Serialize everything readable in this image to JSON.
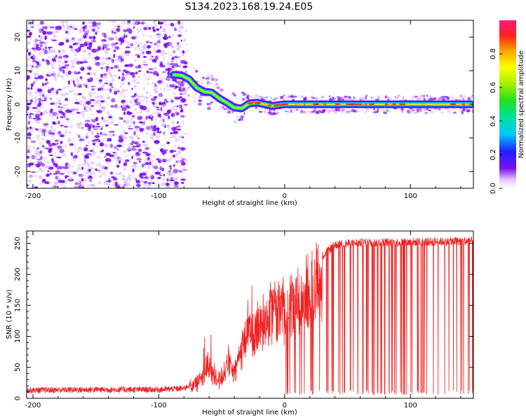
{
  "figure_title": "S134.2023.168.19.24.E05",
  "chart_data": [
    {
      "type": "heatmap",
      "xlabel": "Height of straight line (km)",
      "ylabel": "Frequency (Hz)",
      "xlim": [
        -205,
        150
      ],
      "ylim": [
        -25,
        25
      ],
      "x_ticks": [
        -200,
        -100,
        0,
        100
      ],
      "y_ticks": [
        -20,
        -10,
        0,
        10,
        20
      ],
      "colorbar": {
        "label": "Normalized spectral amplitude",
        "range": [
          0,
          1
        ],
        "ticks": [
          "0.0",
          "0.2",
          "0.4",
          "0.6",
          "0.8"
        ]
      },
      "ridge_frequency_hz": [
        {
          "x": -88,
          "y": 8.8
        },
        {
          "x": -82,
          "y": 8.6
        },
        {
          "x": -76,
          "y": 7.5
        },
        {
          "x": -70,
          "y": 5.0
        },
        {
          "x": -64,
          "y": 3.8
        },
        {
          "x": -58,
          "y": 3.5
        },
        {
          "x": -52,
          "y": 1.8
        },
        {
          "x": -46,
          "y": 0.5
        },
        {
          "x": -40,
          "y": -1.0
        },
        {
          "x": -34,
          "y": -1.2
        },
        {
          "x": -28,
          "y": 0.3
        },
        {
          "x": -22,
          "y": 0.5
        },
        {
          "x": -16,
          "y": 0.0
        },
        {
          "x": -10,
          "y": -0.5
        },
        {
          "x": 0,
          "y": 0.0
        },
        {
          "x": 50,
          "y": 0.0
        },
        {
          "x": 100,
          "y": 0.0
        },
        {
          "x": 148,
          "y": 0.0
        }
      ],
      "noise_region_x": [
        -205,
        -78
      ]
    },
    {
      "type": "line",
      "xlabel": "Height of straight line (km)",
      "ylabel": "SNR (10 * v/v)",
      "xlim": [
        -205,
        150
      ],
      "ylim": [
        0,
        270
      ],
      "x_ticks": [
        -200,
        -100,
        0,
        100
      ],
      "y_ticks": [
        0,
        50,
        100,
        150,
        200,
        250
      ],
      "color": "#ee2222",
      "envelope": [
        {
          "x": -205,
          "y": 12
        },
        {
          "x": -150,
          "y": 13
        },
        {
          "x": -100,
          "y": 13
        },
        {
          "x": -80,
          "y": 15
        },
        {
          "x": -70,
          "y": 28
        },
        {
          "x": -60,
          "y": 60
        },
        {
          "x": -55,
          "y": 35
        },
        {
          "x": -50,
          "y": 40
        },
        {
          "x": -45,
          "y": 70
        },
        {
          "x": -40,
          "y": 45
        },
        {
          "x": -35,
          "y": 90
        },
        {
          "x": -30,
          "y": 125
        },
        {
          "x": -25,
          "y": 120
        },
        {
          "x": -20,
          "y": 140
        },
        {
          "x": -15,
          "y": 150
        },
        {
          "x": -10,
          "y": 160
        },
        {
          "x": -5,
          "y": 165
        },
        {
          "x": 0,
          "y": 170
        },
        {
          "x": 10,
          "y": 180
        },
        {
          "x": 20,
          "y": 205
        },
        {
          "x": 30,
          "y": 230
        },
        {
          "x": 40,
          "y": 248
        },
        {
          "x": 60,
          "y": 251
        },
        {
          "x": 100,
          "y": 252
        },
        {
          "x": 150,
          "y": 254
        }
      ],
      "dropouts_start_x": 0,
      "dropout_floor": 5
    }
  ],
  "colors": {
    "trace": "#ee2222",
    "noise": "#7a10f0"
  }
}
